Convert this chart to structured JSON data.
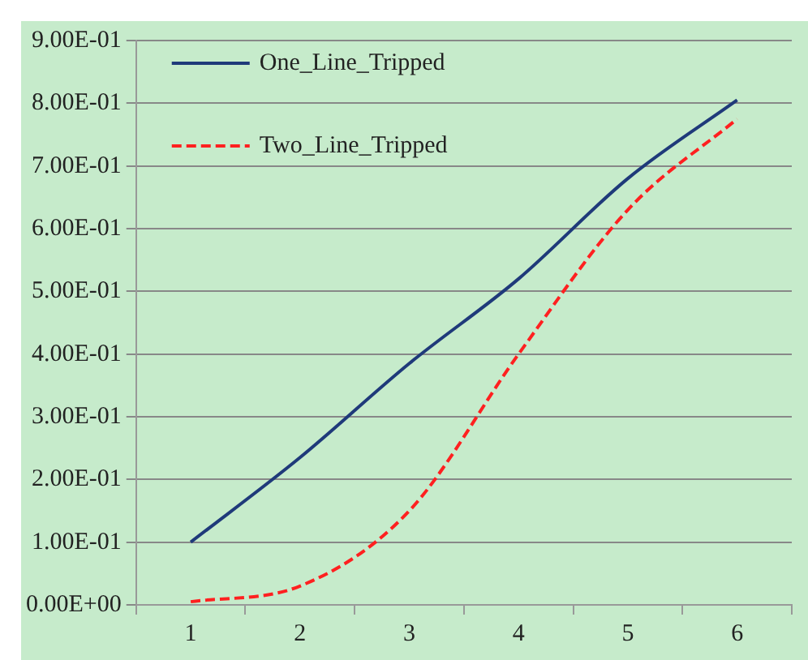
{
  "chart_data": {
    "type": "line",
    "categories": [
      "1",
      "2",
      "3",
      "4",
      "5",
      "6"
    ],
    "series": [
      {
        "name": "One_Line_Tripped",
        "color": "#1f3a7a",
        "line_style": "solid",
        "values": [
          0.1,
          0.235,
          0.385,
          0.52,
          0.68,
          0.805
        ]
      },
      {
        "name": "Two_Line_Tripped",
        "color": "#ff2020",
        "line_style": "dashed",
        "values": [
          0.005,
          0.03,
          0.15,
          0.4,
          0.63,
          0.775
        ]
      }
    ],
    "ylim": [
      0,
      0.9
    ],
    "yticks": [
      {
        "value": 0,
        "label": "0.00E+00"
      },
      {
        "value": 0.1,
        "label": "1.00E-01"
      },
      {
        "value": 0.2,
        "label": "2.00E-01"
      },
      {
        "value": 0.3,
        "label": "3.00E-01"
      },
      {
        "value": 0.4,
        "label": "4.00E-01"
      },
      {
        "value": 0.5,
        "label": "5.00E-01"
      },
      {
        "value": 0.6,
        "label": "6.00E-01"
      },
      {
        "value": 0.7,
        "label": "7.00E-01"
      },
      {
        "value": 0.8,
        "label": "8.00E-01"
      },
      {
        "value": 0.9,
        "label": "9.00E-01"
      }
    ],
    "grid": "y",
    "legend": "top left",
    "marker": "none"
  }
}
